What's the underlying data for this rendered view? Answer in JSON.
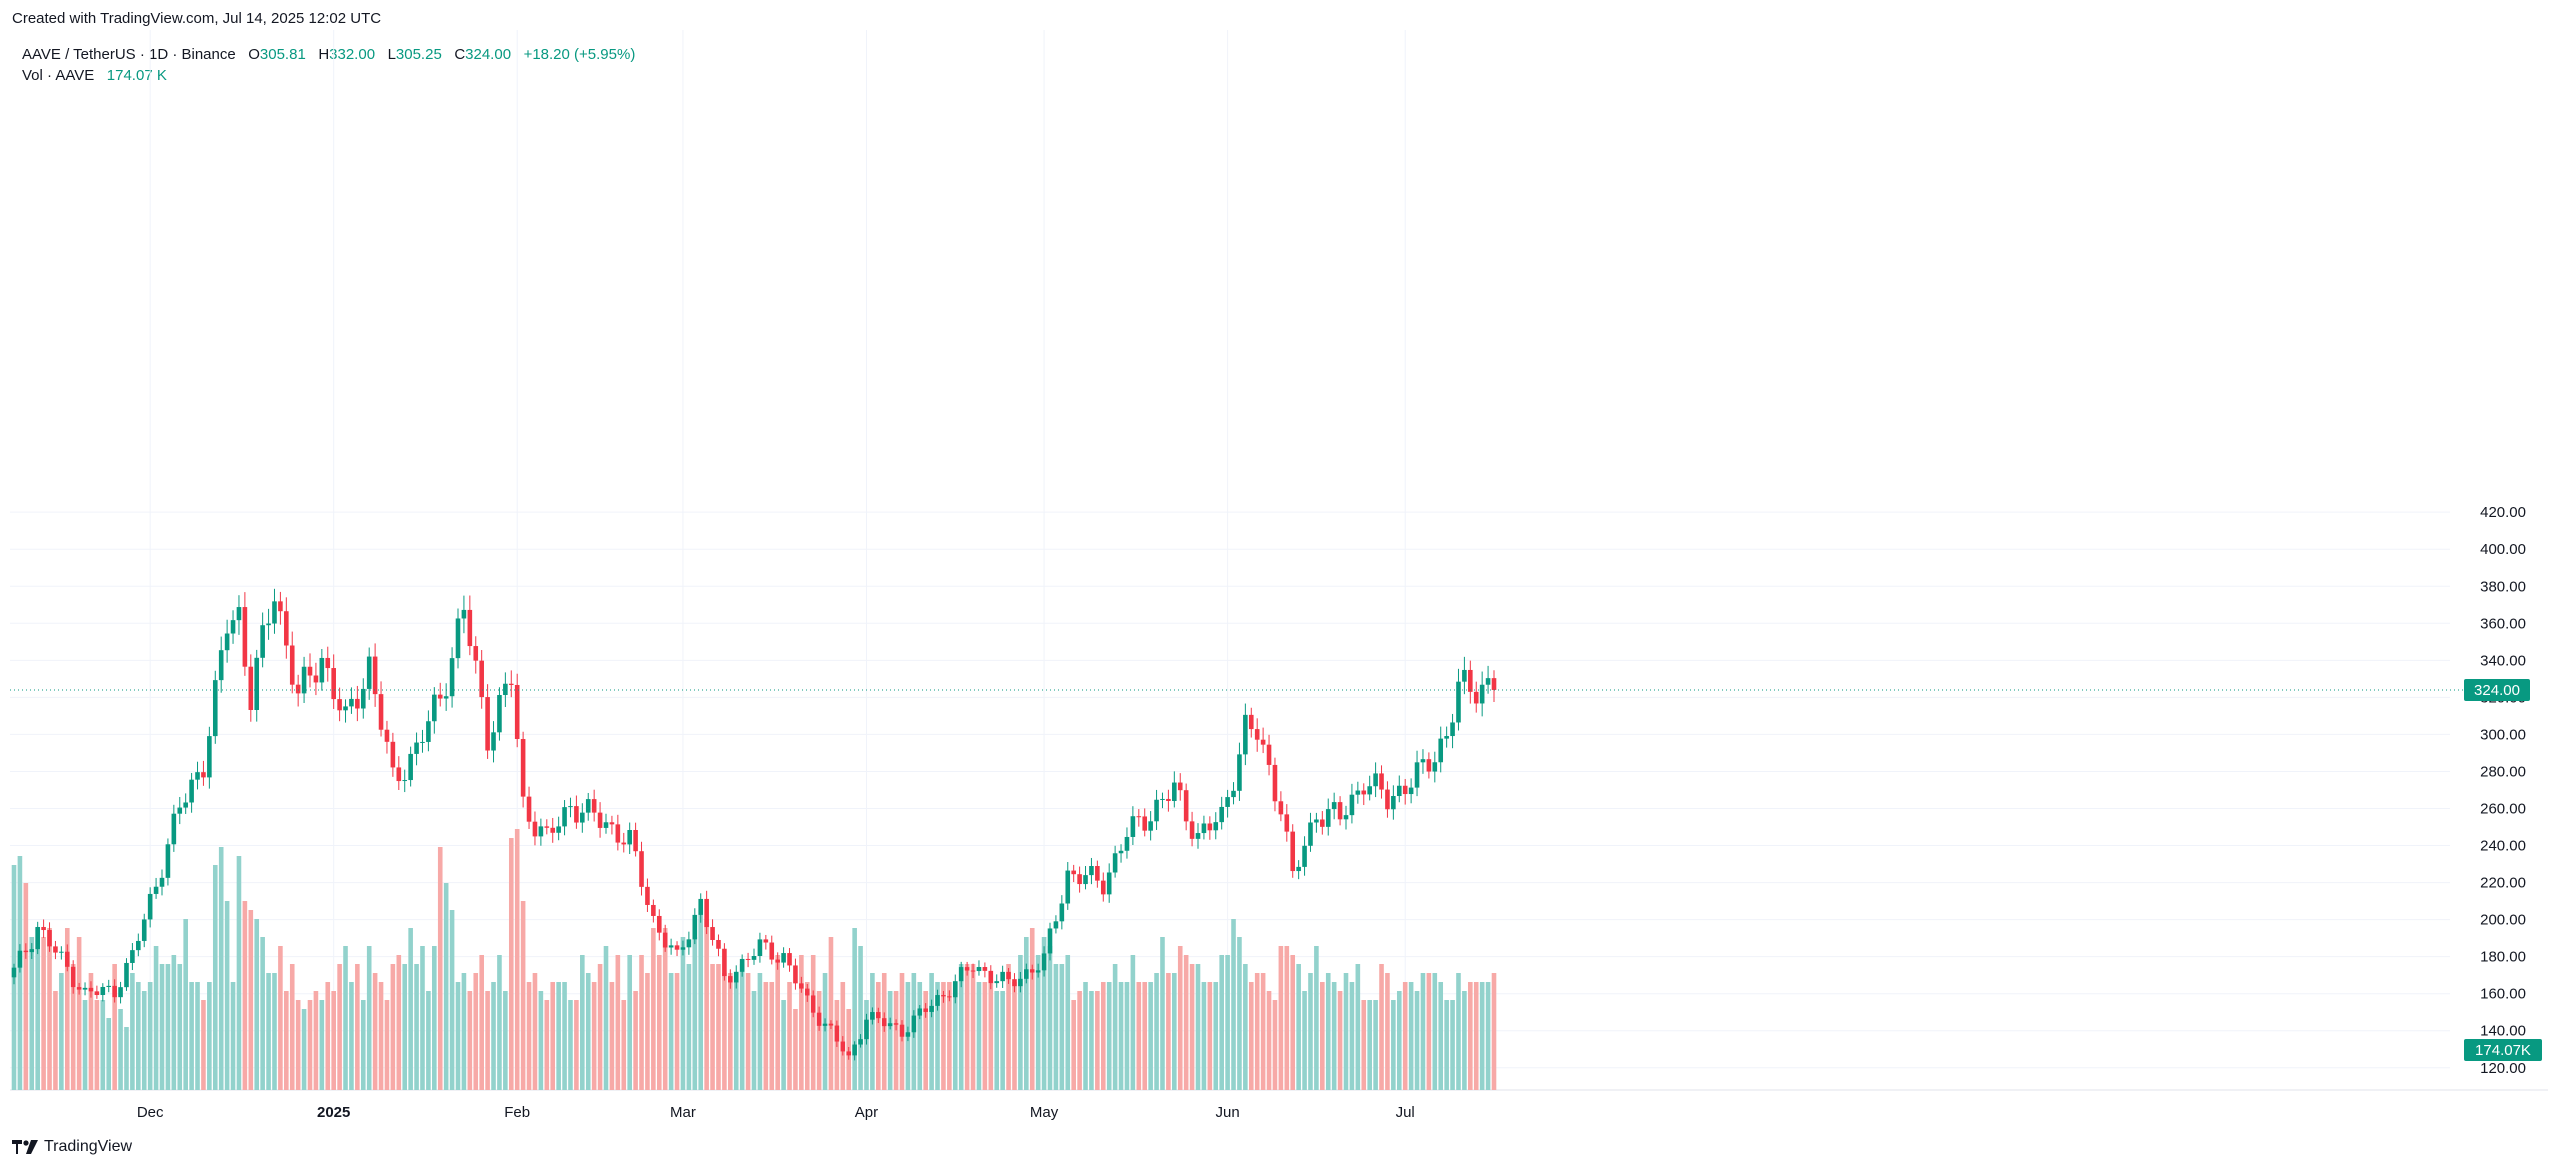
{
  "header": {
    "created_text": "Created with TradingView.com, Jul 14, 2025 12:02 UTC"
  },
  "legend": {
    "symbol": "AAVE / TetherUS · 1D · Binance",
    "o_label": "O",
    "o_value": "305.81",
    "h_label": "H",
    "h_value": "332.00",
    "l_label": "L",
    "l_value": "305.25",
    "c_label": "C",
    "c_value": "324.00",
    "change": "+18.20 (+5.95%)",
    "vol_label": "Vol · AAVE",
    "vol_value": "174.07 K"
  },
  "footer": {
    "brand": "TradingView"
  },
  "colors": {
    "up": "#089981",
    "down": "#f23645",
    "vol_up": "#92d2cc",
    "vol_down": "#f7a9a7",
    "grid": "#f0f3fa"
  },
  "chart_data": {
    "type": "candlestick",
    "price_axis": {
      "ticks": [
        "120.00",
        "140.00",
        "160.00",
        "180.00",
        "200.00",
        "220.00",
        "240.00",
        "260.00",
        "280.00",
        "300.00",
        "320.00",
        "340.00",
        "360.00",
        "380.00",
        "400.00",
        "420.00"
      ],
      "range": [
        108,
        426
      ]
    },
    "last_price_label": "324.00",
    "last_price": 324.0,
    "volume_label": "174.07K",
    "time_axis": [
      {
        "label": "Dec",
        "index": 23
      },
      {
        "label": "2025",
        "index": 54
      },
      {
        "label": "Feb",
        "index": 85
      },
      {
        "label": "Mar",
        "index": 113
      },
      {
        "label": "Apr",
        "index": 144
      },
      {
        "label": "May",
        "index": 174
      },
      {
        "label": "Jun",
        "index": 205
      },
      {
        "label": "Jul",
        "index": 235
      }
    ],
    "series": [
      {
        "name": "AAVE / TetherUS",
        "anchors": [
          [
            0,
            172
          ],
          [
            4,
            196
          ],
          [
            8,
            178
          ],
          [
            12,
            160
          ],
          [
            17,
            162
          ],
          [
            20,
            180
          ],
          [
            24,
            220
          ],
          [
            28,
            260
          ],
          [
            32,
            285
          ],
          [
            34,
            320
          ],
          [
            36,
            360
          ],
          [
            38,
            365
          ],
          [
            40,
            320
          ],
          [
            44,
            378
          ],
          [
            48,
            320
          ],
          [
            52,
            342
          ],
          [
            56,
            306
          ],
          [
            60,
            338
          ],
          [
            64,
            275
          ],
          [
            68,
            292
          ],
          [
            72,
            320
          ],
          [
            76,
            367
          ],
          [
            80,
            300
          ],
          [
            84,
            330
          ],
          [
            86,
            262
          ],
          [
            90,
            243
          ],
          [
            94,
            262
          ],
          [
            100,
            252
          ],
          [
            104,
            242
          ],
          [
            108,
            200
          ],
          [
            112,
            178
          ],
          [
            116,
            210
          ],
          [
            120,
            168
          ],
          [
            126,
            185
          ],
          [
            130,
            180
          ],
          [
            134,
            155
          ],
          [
            138,
            140
          ],
          [
            141,
            124
          ],
          [
            144,
            148
          ],
          [
            150,
            140
          ],
          [
            156,
            157
          ],
          [
            162,
            175
          ],
          [
            168,
            165
          ],
          [
            174,
            178
          ],
          [
            178,
            225
          ],
          [
            184,
            220
          ],
          [
            188,
            246
          ],
          [
            192,
            258
          ],
          [
            196,
            270
          ],
          [
            200,
            245
          ],
          [
            204,
            255
          ],
          [
            208,
            303
          ],
          [
            210,
            300
          ],
          [
            214,
            262
          ],
          [
            216,
            222
          ],
          [
            220,
            258
          ],
          [
            224,
            255
          ],
          [
            228,
            275
          ],
          [
            232,
            265
          ],
          [
            238,
            280
          ],
          [
            242,
            300
          ],
          [
            244,
            324
          ]
        ]
      },
      {
        "name": "Vol · AAVE",
        "values": [
          25,
          26,
          23,
          17,
          18,
          17,
          18,
          11,
          13,
          18,
          14,
          17,
          10,
          13,
          10,
          10,
          8,
          14,
          9,
          7,
          13,
          12,
          11,
          12,
          16,
          14,
          14,
          15,
          14,
          19,
          12,
          12,
          10,
          12,
          25,
          27,
          21,
          12,
          26,
          21,
          20,
          19,
          17,
          13,
          13,
          16,
          11,
          14,
          10,
          9,
          10,
          11,
          10,
          12,
          11,
          14,
          16,
          12,
          14,
          10,
          16,
          13,
          12,
          10,
          14,
          15,
          14,
          18,
          14,
          16,
          11,
          16,
          27,
          23,
          20,
          12,
          13,
          11,
          13,
          15,
          11,
          12,
          15,
          11,
          28,
          29,
          21,
          12,
          13,
          11,
          10,
          12,
          12,
          12,
          10,
          10,
          15,
          13,
          12,
          14,
          16,
          12,
          15,
          10,
          15,
          11,
          15,
          13,
          18,
          15,
          18,
          13,
          13,
          17,
          14,
          17,
          20,
          19,
          14,
          14,
          13,
          13,
          12,
          14,
          13,
          11,
          13,
          12,
          12,
          15,
          10,
          12,
          9,
          15,
          12,
          15,
          11,
          13,
          17,
          10,
          12,
          9,
          18,
          16,
          10,
          13,
          12,
          13,
          11,
          11,
          13,
          12,
          13,
          12,
          11,
          13,
          12,
          12,
          12,
          12,
          14,
          14,
          14,
          12,
          12,
          12,
          11,
          11,
          14,
          12,
          15,
          17,
          18,
          15,
          17,
          16,
          14,
          14,
          15,
          10,
          11,
          12,
          11,
          11,
          12,
          12,
          14,
          12,
          12,
          15,
          12,
          12,
          12,
          13,
          17,
          13,
          13,
          16,
          15,
          14,
          14,
          12,
          12,
          12,
          15,
          15,
          19,
          17,
          14,
          12,
          13,
          13,
          11,
          10,
          16,
          16,
          15,
          14,
          11,
          13,
          16,
          12,
          13,
          12,
          11,
          13,
          12,
          14,
          10,
          10,
          10,
          14,
          13,
          10,
          11,
          12,
          12,
          11,
          13,
          13,
          13,
          12,
          10,
          10,
          13,
          11,
          12,
          12,
          12,
          12,
          13
        ]
      }
    ]
  }
}
